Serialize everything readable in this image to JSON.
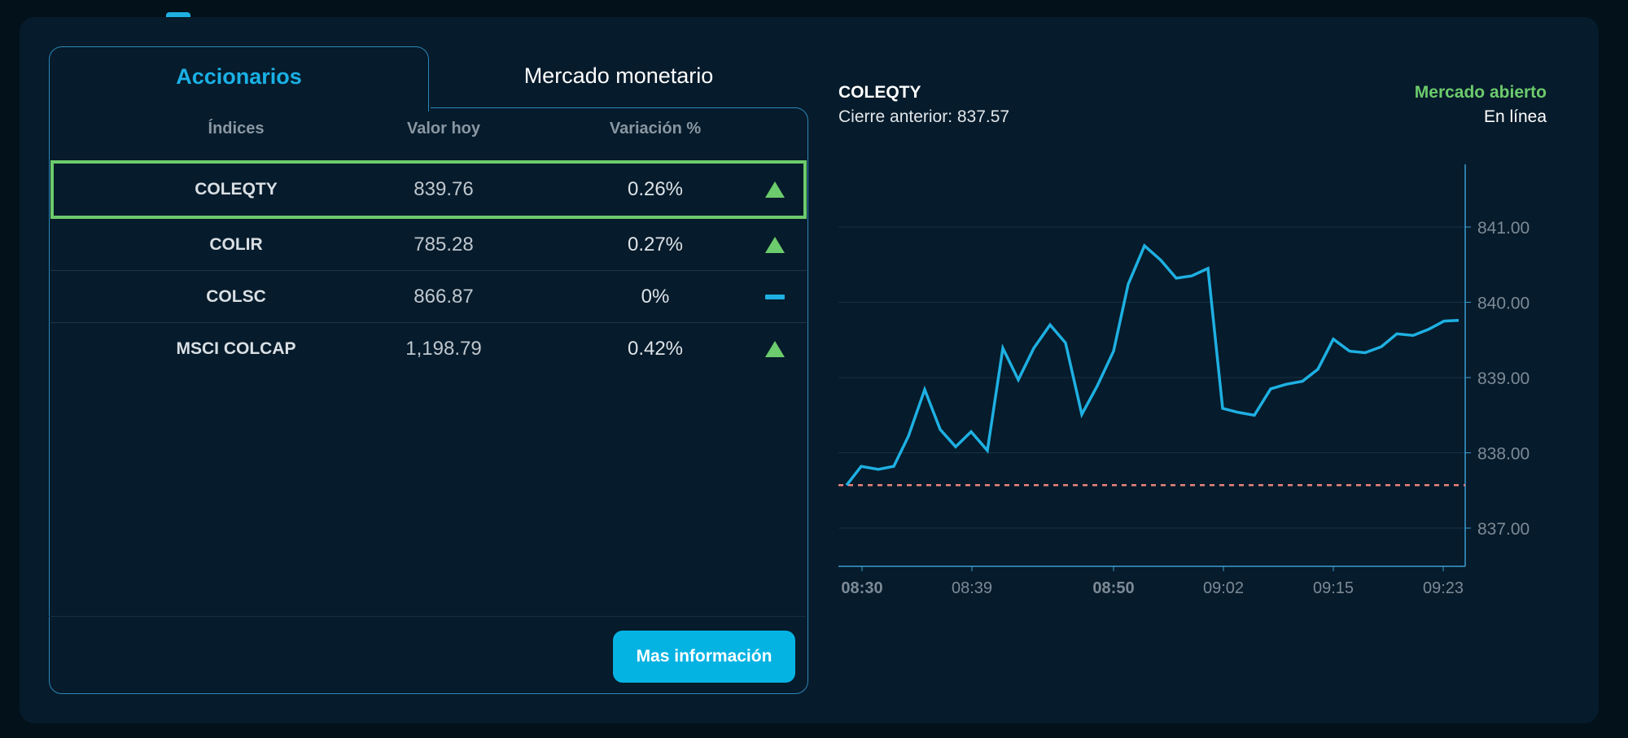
{
  "tabs": {
    "active_label": "Accionarios",
    "inactive_label": "Mercado monetario"
  },
  "table": {
    "headers": {
      "index": "Índices",
      "value": "Valor hoy",
      "variation": "Variación %"
    },
    "rows": [
      {
        "name": "COLEQTY",
        "value": "839.76",
        "variation": "0.26%",
        "trend": "up",
        "selected": true
      },
      {
        "name": "COLIR",
        "value": "785.28",
        "variation": "0.27%",
        "trend": "up",
        "selected": false
      },
      {
        "name": "COLSC",
        "value": "866.87",
        "variation": "0%",
        "trend": "flat",
        "selected": false
      },
      {
        "name": "MSCI COLCAP",
        "value": "1,198.79",
        "variation": "0.42%",
        "trend": "up",
        "selected": false
      }
    ]
  },
  "more_button_label": "Mas información",
  "chart_header": {
    "title": "COLEQTY",
    "previous_close_label": "Cierre anterior: 837.57",
    "market_status": "Mercado abierto",
    "connection_status": "En línea"
  },
  "icons": {
    "up": "triangle-up-icon",
    "flat": "dash-icon"
  },
  "colors": {
    "accent": "#1ab0e6",
    "positive": "#6ccb6c",
    "line": "#1eb0e2",
    "reference_line": "#e8837a",
    "background": "#061b2b",
    "page": "#03111b"
  },
  "chart_data": {
    "type": "line",
    "title": "COLEQTY",
    "xlabel": "",
    "ylabel": "",
    "ylim": [
      836.5,
      841.8
    ],
    "y_ticks": [
      "841.00",
      "840.00",
      "839.00",
      "838.00",
      "837.00"
    ],
    "x_ticks": [
      "08:30",
      "08:39",
      "08:50",
      "09:02",
      "09:15",
      "09:23"
    ],
    "x_ticks_bold": [
      "08:30",
      "08:50"
    ],
    "reference_line": {
      "label": "Cierre anterior",
      "value": 837.57,
      "style": "dashed"
    },
    "grid": "horizontal",
    "y_axis_position": "right",
    "series": [
      {
        "name": "COLEQTY",
        "values": [
          837.57,
          837.82,
          837.78,
          837.82,
          838.22,
          838.84,
          838.31,
          838.08,
          838.28,
          838.03,
          839.39,
          838.97,
          839.39,
          839.7,
          839.46,
          838.51,
          838.89,
          839.35,
          840.24,
          840.75,
          840.56,
          840.32,
          840.35,
          840.45,
          838.59,
          838.54,
          838.5,
          838.85,
          838.91,
          838.95,
          839.11,
          839.51,
          839.35,
          839.33,
          839.41,
          839.58,
          839.56,
          839.64,
          839.75,
          839.76
        ]
      }
    ]
  }
}
